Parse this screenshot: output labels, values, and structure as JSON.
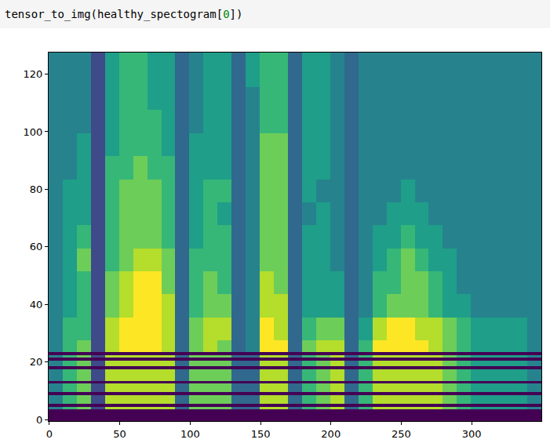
{
  "cell_input": "tensor_to_img(healthy_spectogram[0])",
  "chart_data": {
    "type": "heatmap",
    "color": "viridis",
    "xlim": [
      -0.5,
      349.5
    ],
    "ylim": [
      -0.5,
      127.5
    ],
    "xticks": [
      0,
      50,
      100,
      150,
      200,
      250,
      300
    ],
    "yticks": [
      0,
      20,
      40,
      60,
      80,
      100,
      120
    ],
    "x": [
      -0.5,
      9.5,
      19.5,
      29.5,
      39.5,
      49.5,
      59.5,
      69.5,
      79.5,
      89.5,
      99.5,
      109.5,
      119.5,
      129.5,
      139.5,
      149.5,
      159.5,
      169.5,
      179.5,
      189.5,
      199.5,
      209.5,
      219.5,
      229.5,
      239.5,
      249.5,
      259.5,
      269.5,
      279.5,
      289.5,
      299.5,
      309.5,
      319.5,
      329.5,
      339.5,
      349.5
    ],
    "y": [
      -0.5,
      3.5,
      4.5,
      5.5,
      8.5,
      9.5,
      12.5,
      13.5,
      17.5,
      18.5,
      20.5,
      21.5,
      22.5,
      23.5,
      27.5,
      35.5,
      43.5,
      51.5,
      59.5,
      67.5,
      75.5,
      83.5,
      91.5,
      99.5,
      107.5,
      115.5,
      127.5
    ],
    "cells": [
      [
        0,
        0,
        0,
        0,
        0,
        0,
        0,
        0,
        0,
        0,
        0,
        0,
        0,
        0,
        0,
        0,
        0,
        0,
        0,
        0,
        0,
        0,
        0,
        0,
        0,
        0,
        0,
        0,
        0,
        0,
        0,
        0,
        0,
        0,
        0
      ],
      [
        4,
        6,
        7,
        2,
        8,
        8,
        8,
        8,
        8,
        3,
        7,
        7,
        7,
        3,
        3,
        8,
        8,
        3,
        6,
        7,
        8,
        3,
        6,
        8,
        8,
        8,
        8,
        8,
        7,
        6,
        5,
        5,
        5,
        5,
        4
      ],
      [
        0,
        0,
        0,
        0,
        0,
        0,
        0,
        0,
        0,
        0,
        0,
        0,
        0,
        0,
        0,
        0,
        0,
        0,
        0,
        0,
        0,
        0,
        0,
        0,
        0,
        0,
        0,
        0,
        0,
        0,
        0,
        0,
        0,
        0,
        0
      ],
      [
        4,
        6,
        7,
        2,
        8,
        8,
        8,
        8,
        8,
        3,
        7,
        7,
        7,
        3,
        3,
        8,
        8,
        3,
        6,
        7,
        8,
        3,
        6,
        8,
        8,
        8,
        8,
        8,
        7,
        6,
        5,
        5,
        5,
        5,
        4
      ],
      [
        0,
        0,
        0,
        0,
        0,
        0,
        0,
        0,
        0,
        0,
        0,
        0,
        0,
        0,
        0,
        0,
        0,
        0,
        0,
        0,
        0,
        0,
        0,
        0,
        0,
        0,
        0,
        0,
        0,
        0,
        0,
        0,
        0,
        0,
        0
      ],
      [
        4,
        6,
        7,
        2,
        8,
        8,
        8,
        8,
        8,
        3,
        7,
        7,
        7,
        3,
        3,
        8,
        8,
        3,
        6,
        7,
        8,
        3,
        6,
        8,
        8,
        8,
        8,
        8,
        7,
        6,
        5,
        5,
        5,
        5,
        4
      ],
      [
        0,
        0,
        0,
        0,
        0,
        0,
        0,
        0,
        0,
        0,
        0,
        0,
        0,
        0,
        0,
        0,
        0,
        0,
        0,
        0,
        0,
        0,
        0,
        0,
        0,
        0,
        0,
        0,
        0,
        0,
        0,
        0,
        0,
        0,
        0
      ],
      [
        4,
        6,
        7,
        2,
        8,
        8,
        8,
        8,
        8,
        3,
        7,
        7,
        7,
        3,
        3,
        8,
        8,
        3,
        6,
        7,
        8,
        3,
        6,
        8,
        8,
        8,
        8,
        8,
        7,
        6,
        5,
        5,
        5,
        5,
        4
      ],
      [
        0,
        0,
        0,
        0,
        0,
        0,
        0,
        0,
        0,
        0,
        0,
        0,
        0,
        0,
        0,
        0,
        0,
        0,
        0,
        0,
        0,
        0,
        0,
        0,
        0,
        0,
        0,
        0,
        0,
        0,
        0,
        0,
        0,
        0,
        0
      ],
      [
        4,
        6,
        7,
        2,
        8,
        8,
        8,
        8,
        8,
        3,
        7,
        7,
        7,
        3,
        3,
        8,
        8,
        3,
        6,
        7,
        8,
        3,
        6,
        8,
        8,
        8,
        8,
        8,
        7,
        6,
        5,
        5,
        5,
        5,
        4
      ],
      [
        0,
        0,
        0,
        0,
        0,
        0,
        0,
        0,
        0,
        0,
        0,
        0,
        0,
        0,
        0,
        0,
        0,
        0,
        0,
        0,
        0,
        0,
        0,
        0,
        0,
        0,
        0,
        0,
        0,
        0,
        0,
        0,
        0,
        0,
        0
      ],
      [
        4,
        6,
        7,
        2,
        8,
        8,
        8,
        8,
        8,
        3,
        7,
        7,
        7,
        3,
        3,
        8,
        8,
        3,
        6,
        7,
        8,
        3,
        6,
        8,
        8,
        8,
        8,
        8,
        7,
        6,
        5,
        5,
        5,
        5,
        4
      ],
      [
        0,
        0,
        0,
        0,
        0,
        0,
        0,
        0,
        0,
        0,
        0,
        0,
        0,
        0,
        0,
        0,
        0,
        0,
        0,
        0,
        0,
        0,
        0,
        0,
        0,
        0,
        0,
        0,
        0,
        0,
        0,
        0,
        0,
        0,
        0
      ],
      [
        4,
        6,
        7,
        2,
        8,
        9,
        9,
        9,
        8,
        3,
        7,
        8,
        7,
        3,
        4,
        9,
        9,
        3,
        7,
        8,
        8,
        3,
        6,
        9,
        9,
        9,
        9,
        8,
        7,
        6,
        5,
        5,
        5,
        5,
        4
      ],
      [
        4,
        6,
        6,
        2,
        8,
        9,
        9,
        9,
        8,
        3,
        7,
        8,
        8,
        3,
        4,
        9,
        8,
        3,
        6,
        7,
        7,
        3,
        5,
        8,
        9,
        9,
        8,
        8,
        7,
        6,
        5,
        5,
        5,
        5,
        4
      ],
      [
        4,
        5,
        6,
        2,
        7,
        8,
        9,
        9,
        8,
        3,
        6,
        7,
        7,
        3,
        4,
        8,
        8,
        3,
        5,
        5,
        5,
        3,
        4,
        6,
        7,
        7,
        7,
        6,
        5,
        5,
        4,
        4,
        4,
        4,
        4
      ],
      [
        4,
        5,
        6,
        2,
        7,
        8,
        9,
        9,
        7,
        3,
        6,
        7,
        6,
        3,
        4,
        8,
        7,
        3,
        5,
        5,
        5,
        3,
        4,
        6,
        6,
        7,
        7,
        6,
        5,
        4,
        4,
        4,
        4,
        4,
        4
      ],
      [
        4,
        5,
        7,
        2,
        6,
        7,
        8,
        8,
        7,
        3,
        6,
        6,
        6,
        3,
        4,
        7,
        7,
        3,
        5,
        5,
        4,
        3,
        4,
        5,
        6,
        7,
        6,
        5,
        5,
        4,
        4,
        4,
        4,
        4,
        4
      ],
      [
        4,
        5,
        6,
        2,
        6,
        7,
        7,
        7,
        6,
        3,
        5,
        6,
        6,
        3,
        4,
        7,
        7,
        3,
        5,
        5,
        4,
        3,
        4,
        5,
        5,
        6,
        5,
        5,
        4,
        4,
        4,
        4,
        4,
        4,
        4
      ],
      [
        4,
        5,
        5,
        2,
        6,
        7,
        7,
        7,
        6,
        3,
        5,
        6,
        5,
        3,
        4,
        7,
        7,
        3,
        4,
        5,
        4,
        3,
        4,
        4,
        5,
        5,
        5,
        4,
        4,
        4,
        4,
        4,
        4,
        4,
        4
      ],
      [
        4,
        5,
        5,
        2,
        6,
        7,
        7,
        7,
        6,
        3,
        5,
        6,
        6,
        3,
        4,
        7,
        7,
        3,
        5,
        4,
        4,
        3,
        4,
        4,
        4,
        5,
        4,
        4,
        4,
        4,
        4,
        4,
        4,
        4,
        4
      ],
      [
        4,
        4,
        5,
        2,
        6,
        6,
        7,
        6,
        6,
        3,
        5,
        5,
        5,
        3,
        4,
        7,
        7,
        3,
        5,
        5,
        4,
        3,
        4,
        4,
        4,
        4,
        4,
        4,
        4,
        4,
        4,
        4,
        4,
        4,
        4
      ],
      [
        4,
        4,
        5,
        2,
        5,
        6,
        6,
        6,
        5,
        3,
        5,
        5,
        5,
        3,
        4,
        7,
        7,
        3,
        5,
        5,
        4,
        3,
        4,
        4,
        4,
        4,
        4,
        4,
        4,
        4,
        4,
        4,
        4,
        4,
        4
      ],
      [
        4,
        4,
        4,
        2,
        5,
        6,
        6,
        6,
        5,
        3,
        4,
        5,
        5,
        3,
        4,
        6,
        6,
        3,
        5,
        5,
        4,
        3,
        4,
        4,
        4,
        4,
        4,
        4,
        4,
        4,
        4,
        4,
        4,
        4,
        4
      ],
      [
        4,
        4,
        4,
        2,
        5,
        6,
        6,
        5,
        5,
        3,
        4,
        5,
        5,
        3,
        4,
        6,
        6,
        3,
        5,
        5,
        4,
        3,
        4,
        4,
        4,
        4,
        4,
        4,
        4,
        4,
        4,
        4,
        4,
        4,
        4
      ],
      [
        4,
        4,
        4,
        2,
        5,
        6,
        6,
        5,
        5,
        3,
        4,
        5,
        5,
        3,
        5,
        6,
        6,
        3,
        5,
        5,
        4,
        3,
        4,
        4,
        4,
        4,
        4,
        4,
        4,
        4,
        4,
        4,
        4,
        4,
        4
      ]
    ]
  }
}
